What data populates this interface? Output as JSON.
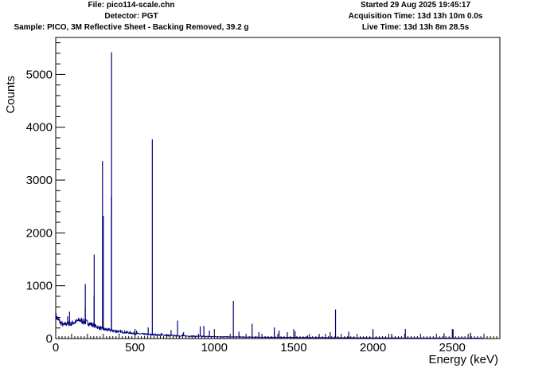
{
  "header": {
    "file": "File: pico114-scale.chn",
    "detector": "Detector: PGT",
    "sample": "Sample: PICO, 3M Reflective Sheet - Backing Removed, 39.2 g",
    "started": "Started 29 Aug 2025 19:45:17",
    "acquisition": "Acquisition Time: 13d 13h 10m 0.0s",
    "live": "Live Time: 13d 13h 8m 28.5s"
  },
  "chart_data": {
    "type": "line",
    "xlabel": "Energy (keV)",
    "ylabel": "Counts",
    "xlim": [
      0,
      2800
    ],
    "ylim": [
      0,
      5700
    ],
    "x_ticks": [
      0,
      500,
      1000,
      1500,
      2000,
      2500
    ],
    "y_ticks": [
      0,
      1000,
      2000,
      3000,
      4000,
      5000
    ],
    "line_color": "#00007f",
    "grid": false,
    "continuum": [
      {
        "x": 0,
        "y": 430
      },
      {
        "x": 10,
        "y": 380
      },
      {
        "x": 30,
        "y": 300
      },
      {
        "x": 50,
        "y": 250
      },
      {
        "x": 70,
        "y": 290
      },
      {
        "x": 90,
        "y": 270
      },
      {
        "x": 110,
        "y": 300
      },
      {
        "x": 130,
        "y": 320
      },
      {
        "x": 150,
        "y": 350
      },
      {
        "x": 170,
        "y": 330
      },
      {
        "x": 190,
        "y": 310
      },
      {
        "x": 210,
        "y": 290
      },
      {
        "x": 240,
        "y": 250
      },
      {
        "x": 270,
        "y": 210
      },
      {
        "x": 300,
        "y": 180
      },
      {
        "x": 340,
        "y": 160
      },
      {
        "x": 380,
        "y": 140
      },
      {
        "x": 420,
        "y": 125
      },
      {
        "x": 460,
        "y": 110
      },
      {
        "x": 500,
        "y": 95
      },
      {
        "x": 550,
        "y": 85
      },
      {
        "x": 600,
        "y": 75
      },
      {
        "x": 650,
        "y": 68
      },
      {
        "x": 700,
        "y": 60
      },
      {
        "x": 800,
        "y": 50
      },
      {
        "x": 900,
        "y": 42
      },
      {
        "x": 1000,
        "y": 36
      },
      {
        "x": 1100,
        "y": 31
      },
      {
        "x": 1200,
        "y": 27
      },
      {
        "x": 1400,
        "y": 22
      },
      {
        "x": 1600,
        "y": 18
      },
      {
        "x": 1800,
        "y": 15
      },
      {
        "x": 2000,
        "y": 12
      },
      {
        "x": 2200,
        "y": 10
      },
      {
        "x": 2400,
        "y": 8
      },
      {
        "x": 2600,
        "y": 7
      },
      {
        "x": 2800,
        "y": 6
      }
    ],
    "peaks": [
      {
        "energy": 75,
        "counts": 420
      },
      {
        "energy": 87,
        "counts": 510
      },
      {
        "energy": 186,
        "counts": 600
      },
      {
        "energy": 186.5,
        "counts": 1030
      },
      {
        "energy": 242,
        "counts": 820
      },
      {
        "energy": 242.5,
        "counts": 1590
      },
      {
        "energy": 295,
        "counts": 3360
      },
      {
        "energy": 300,
        "counts": 2320
      },
      {
        "energy": 352,
        "counts": 5420
      },
      {
        "energy": 351,
        "counts": 2680
      },
      {
        "energy": 510,
        "counts": 150
      },
      {
        "energy": 583,
        "counts": 210
      },
      {
        "energy": 609,
        "counts": 3770
      },
      {
        "energy": 666,
        "counts": 110
      },
      {
        "energy": 727,
        "counts": 160
      },
      {
        "energy": 768,
        "counts": 340
      },
      {
        "energy": 806,
        "counts": 120
      },
      {
        "energy": 911,
        "counts": 230
      },
      {
        "energy": 934,
        "counts": 240
      },
      {
        "energy": 969,
        "counts": 150
      },
      {
        "energy": 1120,
        "counts": 710
      },
      {
        "energy": 1155,
        "counts": 130
      },
      {
        "energy": 1238,
        "counts": 280
      },
      {
        "energy": 1281,
        "counts": 120
      },
      {
        "energy": 1378,
        "counts": 210
      },
      {
        "energy": 1408,
        "counts": 150
      },
      {
        "energy": 1460,
        "counts": 120
      },
      {
        "energy": 1509,
        "counts": 140
      },
      {
        "energy": 1588,
        "counts": 60
      },
      {
        "energy": 1661,
        "counts": 90
      },
      {
        "energy": 1730,
        "counts": 120
      },
      {
        "energy": 1764,
        "counts": 550
      },
      {
        "energy": 1847,
        "counts": 130
      },
      {
        "energy": 2000,
        "counts": 160
      },
      {
        "energy": 2118,
        "counts": 90
      },
      {
        "energy": 2204,
        "counts": 180
      },
      {
        "energy": 2448,
        "counts": 100
      },
      {
        "energy": 2505,
        "counts": 175
      },
      {
        "energy": 2615,
        "counts": 110
      }
    ]
  }
}
